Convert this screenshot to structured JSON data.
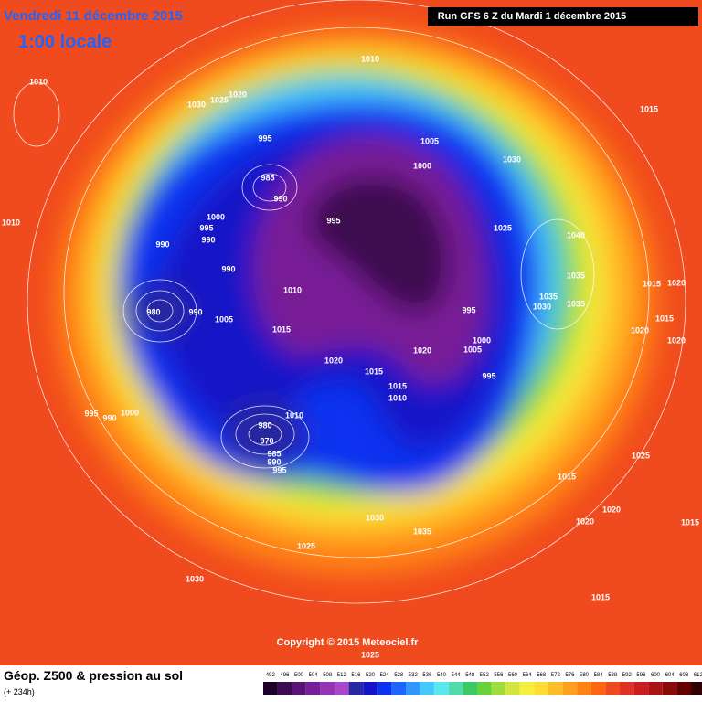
{
  "header": {
    "date": "Vendredi 11 décembre 2015",
    "time": "1:00 locale",
    "run": "Run GFS 6 Z du Mardi 1 décembre 2015"
  },
  "copyright": "Copyright © 2015 Meteociel.fr",
  "footer": {
    "title": "Géop. Z500 & pression au sol",
    "lead": "(+ 234h)"
  },
  "isobars": [
    "1010",
    "1010",
    "1030",
    "1025",
    "1020",
    "1015",
    "995",
    "1005",
    "1000",
    "1030",
    "985",
    "990",
    "1000",
    "995",
    "995",
    "990",
    "1010",
    "990",
    "1025",
    "1040",
    "990",
    "1035",
    "1010",
    "1015",
    "1020",
    "1035",
    "1030",
    "1035",
    "980",
    "990",
    "1005",
    "995",
    "1015",
    "1015",
    "1020",
    "1020",
    "1020",
    "1005",
    "1000",
    "1020",
    "1015",
    "995",
    "1015",
    "1010",
    "995",
    "990",
    "1000",
    "1010",
    "980",
    "970",
    "985",
    "990",
    "995",
    "1025",
    "1015",
    "1020",
    "1030",
    "1020",
    "1015",
    "1035",
    "1025",
    "1030",
    "1015",
    "1025"
  ],
  "scale": {
    "ticks": [
      492,
      496,
      500,
      504,
      508,
      512,
      516,
      520,
      524,
      528,
      532,
      536,
      540,
      544,
      548,
      552,
      556,
      560,
      564,
      568,
      572,
      576,
      580,
      584,
      588,
      592,
      596,
      600,
      604,
      608,
      612
    ],
    "colors": [
      "#1e0028",
      "#3c0a50",
      "#5a1478",
      "#781e96",
      "#9632b4",
      "#aa46c8",
      "#2828a0",
      "#1414c8",
      "#0a32f0",
      "#1e64ff",
      "#3296ff",
      "#46c8ff",
      "#5ae6f0",
      "#50dcaa",
      "#3cc864",
      "#64d23c",
      "#a0dc3c",
      "#d2e63c",
      "#f5f03c",
      "#ffdc32",
      "#ffbe28",
      "#ffa01e",
      "#ff8214",
      "#ff640f",
      "#f04b1e",
      "#e13228",
      "#c81e1e",
      "#aa1414",
      "#8c0a0a",
      "#640000",
      "#320000"
    ]
  }
}
